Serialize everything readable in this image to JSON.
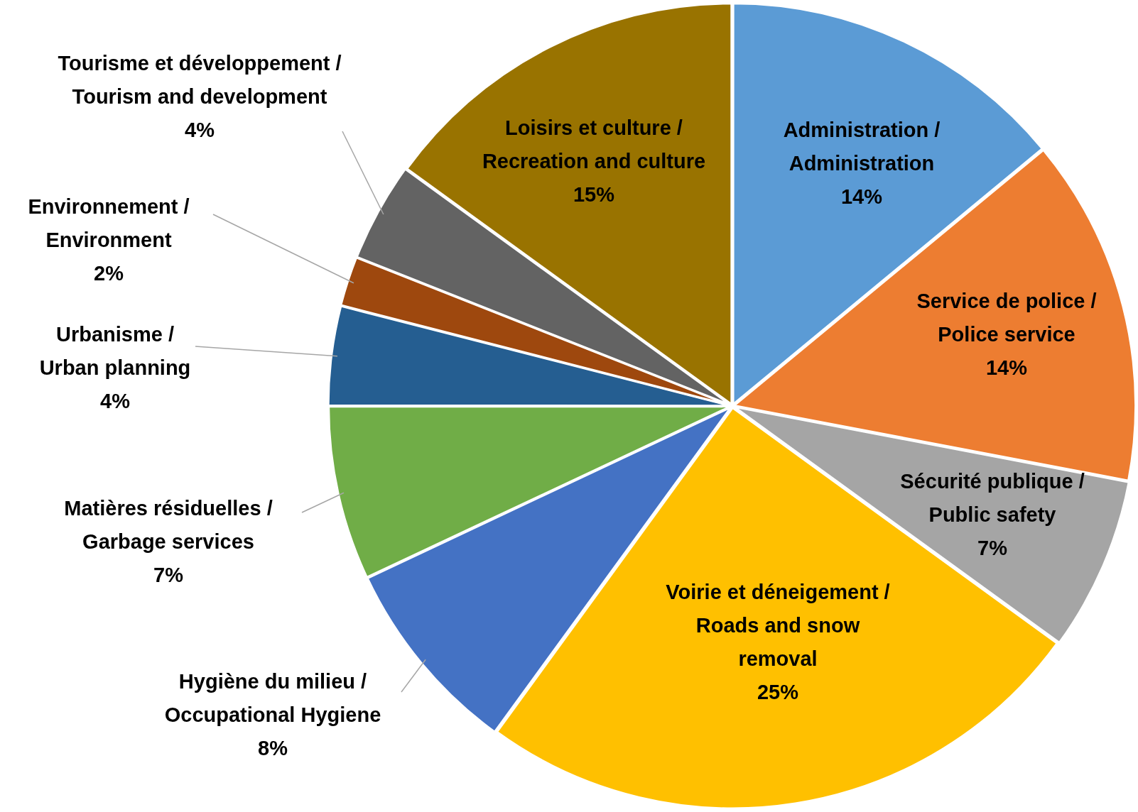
{
  "chart_data": {
    "type": "pie",
    "categories": [
      "Administration / Administration",
      "Service de police / Police service",
      "Sécurité publique / Public safety",
      "Voirie et déneigement / Roads and snow removal",
      "Hygiène du milieu / Occupational Hygiene",
      "Matières résiduelles / Garbage services",
      "Urbanisme / Urban planning",
      "Environnement / Environment",
      "Tourisme et développement / Tourism and development",
      "Loisirs et culture / Recreation and culture"
    ],
    "values": [
      14,
      14,
      7,
      25,
      8,
      7,
      4,
      2,
      4,
      15
    ],
    "value_labels": [
      "14%",
      "14%",
      "7%",
      "25%",
      "8%",
      "7%",
      "4%",
      "2%",
      "4%",
      "15%"
    ],
    "colors": [
      "#5b9bd5",
      "#ed7d31",
      "#a5a5a5",
      "#ffc000",
      "#4472c4",
      "#70ad47",
      "#255e91",
      "#9e480e",
      "#636363",
      "#997300"
    ],
    "legend": false
  }
}
